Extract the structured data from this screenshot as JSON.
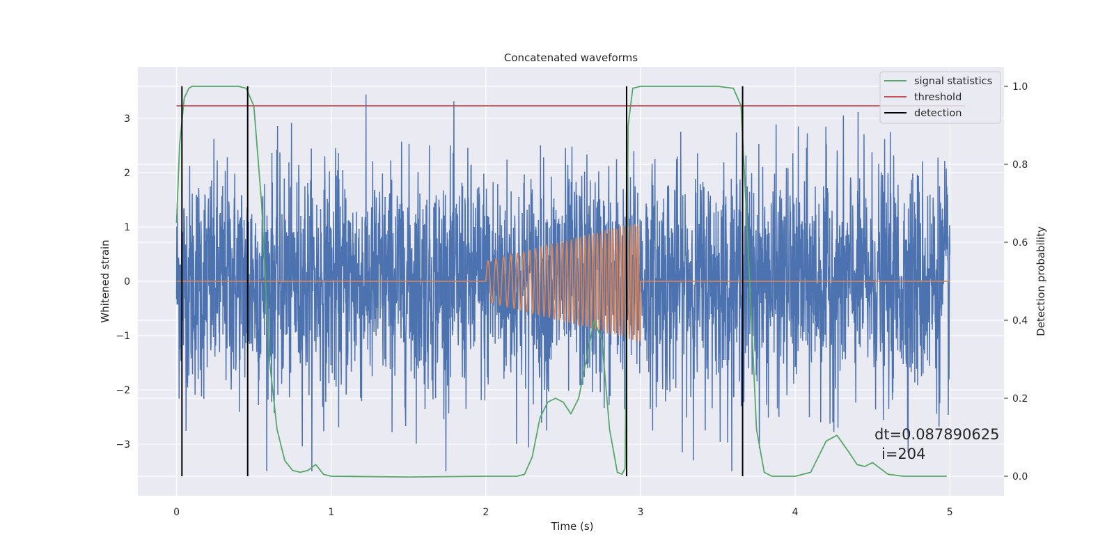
{
  "chart_data": {
    "type": "line",
    "title": "Concatenated waveforms",
    "xlabel": "Time (s)",
    "ylabel_left": "Whitened strain",
    "ylabel_right": "Detection probability",
    "xlim": [
      -0.25,
      5.35
    ],
    "ylim_left": [
      -3.95,
      3.95
    ],
    "ylim_right": [
      -0.05,
      1.05
    ],
    "grid": true,
    "x_ticks": [
      0,
      1,
      2,
      3,
      4,
      5
    ],
    "x_tick_labels": [
      "0",
      "1",
      "2",
      "3",
      "4",
      "5"
    ],
    "y_left_ticks": [
      -3,
      -2,
      -1,
      0,
      1,
      2,
      3
    ],
    "y_left_tick_labels": [
      "−3",
      "−2",
      "−1",
      "0",
      "1",
      "2",
      "3"
    ],
    "y_right_ticks": [
      0.0,
      0.2,
      0.4,
      0.6,
      0.8,
      1.0
    ],
    "y_right_tick_labels": [
      "0.0",
      "0.2",
      "0.4",
      "0.6",
      "0.8",
      "1.0"
    ],
    "legend": {
      "position": "upper-right",
      "entries": [
        {
          "label": "signal statistics",
          "color": "#55a868"
        },
        {
          "label": "threshold",
          "color": "#c44e52"
        },
        {
          "label": "detection",
          "color": "#000000"
        }
      ]
    },
    "series": [
      {
        "name": "",
        "axis": "left",
        "color": "#4c72b0",
        "kind": "noise",
        "x_range": [
          0,
          5
        ],
        "amplitude_range": [
          -3.5,
          3.45
        ]
      },
      {
        "name": "",
        "axis": "left",
        "color": "#dd8452",
        "kind": "chirp",
        "x_range": [
          0,
          5
        ],
        "chirp_start": 2.0,
        "chirp_end": 3.0,
        "amplitude_start": 0.37,
        "amplitude_end": 1.12
      },
      {
        "name": "signal statistics",
        "axis": "right",
        "color": "#55a868",
        "x": [
          0.0,
          0.02,
          0.05,
          0.08,
          0.1,
          0.2,
          0.3,
          0.4,
          0.45,
          0.5,
          0.55,
          0.6,
          0.65,
          0.7,
          0.75,
          0.8,
          0.85,
          0.9,
          0.95,
          1.0,
          1.5,
          2.0,
          2.2,
          2.25,
          2.3,
          2.35,
          2.4,
          2.45,
          2.5,
          2.55,
          2.6,
          2.65,
          2.7,
          2.75,
          2.8,
          2.85,
          2.88,
          2.9,
          2.92,
          2.95,
          3.0,
          3.5,
          3.6,
          3.65,
          3.7,
          3.75,
          3.8,
          3.85,
          4.0,
          4.1,
          4.15,
          4.2,
          4.27,
          4.35,
          4.4,
          4.45,
          4.5,
          4.55,
          4.6,
          4.7,
          4.98
        ],
        "values": [
          0.65,
          0.85,
          0.97,
          0.995,
          1.0,
          1.0,
          1.0,
          1.0,
          0.995,
          0.95,
          0.7,
          0.3,
          0.12,
          0.04,
          0.015,
          0.01,
          0.015,
          0.03,
          0.005,
          0.0,
          -0.002,
          0.0,
          0.0,
          0.005,
          0.05,
          0.15,
          0.19,
          0.2,
          0.19,
          0.16,
          0.2,
          0.3,
          0.4,
          0.35,
          0.12,
          0.01,
          0.005,
          0.02,
          0.9,
          0.995,
          1.0,
          1.0,
          0.995,
          0.95,
          0.55,
          0.12,
          0.01,
          0.0,
          0.0,
          0.01,
          0.05,
          0.09,
          0.105,
          0.06,
          0.03,
          0.025,
          0.035,
          0.02,
          0.005,
          0.0,
          0.0
        ]
      },
      {
        "name": "threshold",
        "axis": "right",
        "color": "#c44e52",
        "x": [
          0,
          5.1
        ],
        "values": [
          0.95,
          0.95
        ]
      },
      {
        "name": "detection",
        "axis": "right",
        "color": "#000000",
        "kind": "vertical-lines",
        "x": [
          0.035,
          0.46,
          2.91,
          3.66
        ],
        "y_range": [
          0,
          1
        ]
      }
    ],
    "annotations": [
      "dt=0.087890625",
      "i=204"
    ]
  }
}
